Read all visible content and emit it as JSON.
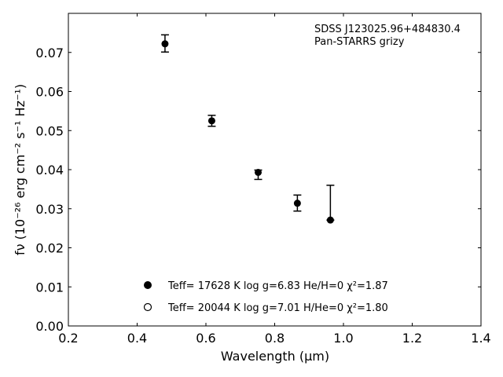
{
  "chart_data": {
    "type": "scatter",
    "xlabel": "Wavelength (μm)",
    "ylabel": "fν (10⁻²⁶ erg cm⁻² s⁻¹ Hz⁻¹)",
    "xlim": [
      0.2,
      1.4
    ],
    "ylim": [
      0.0,
      0.08
    ],
    "x_ticks": [
      0.2,
      0.4,
      0.6,
      0.8,
      1.0,
      1.2,
      1.4
    ],
    "y_ticks": [
      0.0,
      0.01,
      0.02,
      0.03,
      0.04,
      0.05,
      0.06,
      0.07
    ],
    "x_tick_labels": [
      "0.2",
      "0.4",
      "0.6",
      "0.8",
      "1.0",
      "1.2",
      "1.4"
    ],
    "y_tick_labels": [
      "0.00",
      "0.01",
      "0.02",
      "0.03",
      "0.04",
      "0.05",
      "0.06",
      "0.07"
    ],
    "grid": false,
    "annotation": [
      "SDSS J123025.96+484830.4",
      "Pan-STARRS grizy"
    ],
    "annotation_position": "top-right",
    "observed": {
      "x": [
        0.481,
        0.617,
        0.752,
        0.866,
        0.962
      ],
      "y": [
        0.0722,
        0.0525,
        0.0393,
        0.0314,
        0.0271
      ],
      "yerr_low": [
        0.0021,
        0.0014,
        0.0018,
        0.002,
        0.0
      ],
      "yerr_high": [
        0.0023,
        0.0014,
        0.0006,
        0.0021,
        0.0089
      ]
    },
    "series": [
      {
        "name": "Teff= 17628 K  log g=6.83  He/H=0  χ²=1.87",
        "marker": "filled-circle"
      },
      {
        "name": "Teff= 20044 K  log g=7.01  H/He=0  χ²=1.80",
        "marker": "open-circle"
      }
    ],
    "legend_position": "lower-center"
  }
}
